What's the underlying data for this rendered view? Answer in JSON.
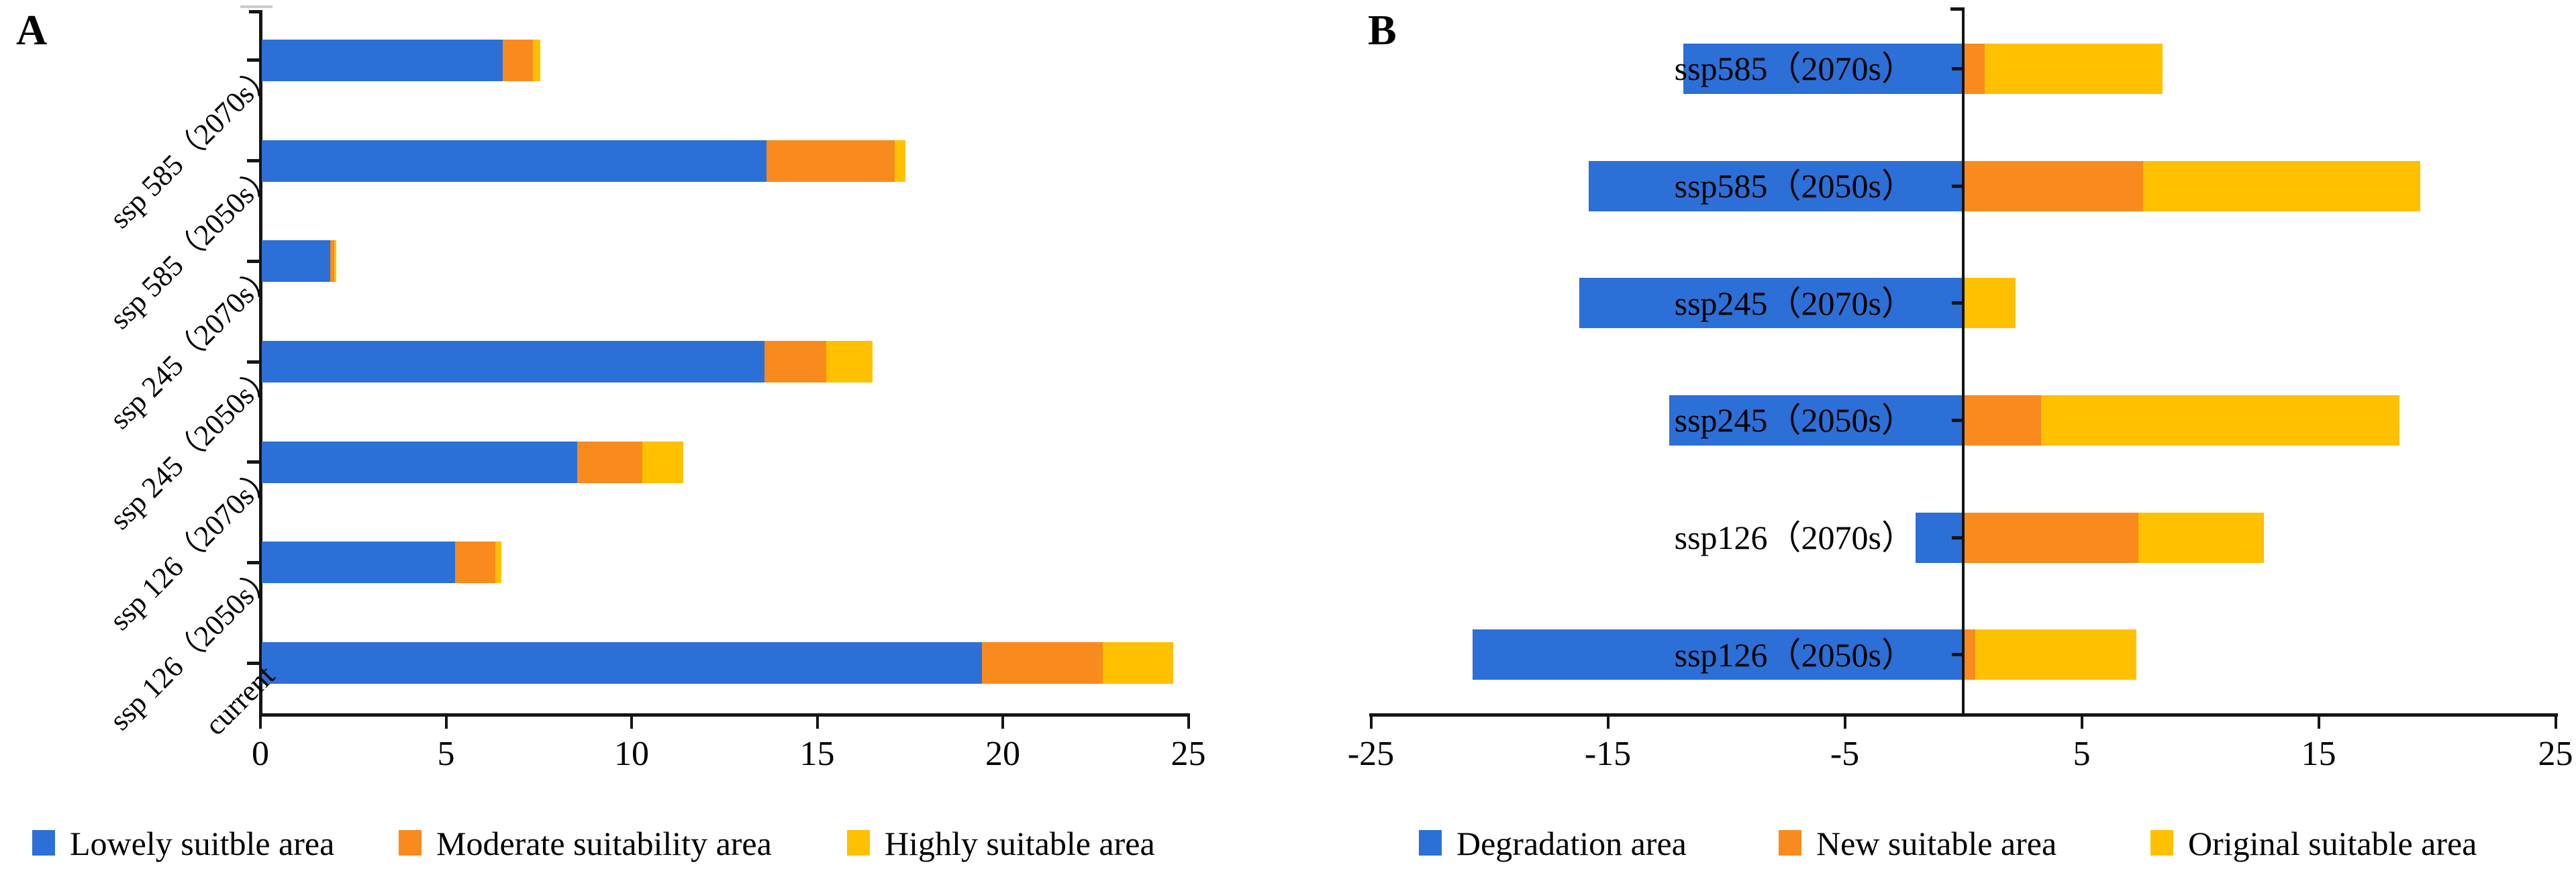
{
  "panels": [
    {
      "letter": "A"
    },
    {
      "letter": "B"
    }
  ],
  "chart_data": [
    {
      "type": "bar",
      "orientation": "horizontal-stacked",
      "panel_label": "A",
      "title": "",
      "xlabel": "",
      "ylabel": "",
      "grid": false,
      "legend_position": "bottom",
      "xlim": [
        0,
        25
      ],
      "x_ticks": [
        {
          "value": 0,
          "label": "0"
        },
        {
          "value": 5,
          "label": "5"
        },
        {
          "value": 10,
          "label": "10"
        },
        {
          "value": 15,
          "label": "15"
        },
        {
          "value": 20,
          "label": "20"
        },
        {
          "value": 25,
          "label": "25"
        }
      ],
      "categories": [
        "ssp 585（2070s）",
        "ssp 585（2050s）",
        "ssp 245（2070s）",
        "ssp 245（2050s）",
        "ssp 126（2070s）",
        "ssp 126（2050s）",
        "current"
      ],
      "series": [
        {
          "name": "Lowely suitble area",
          "color": "#2C6FD6",
          "values": [
            6.5,
            13.6,
            1.85,
            13.55,
            8.5,
            5.2,
            19.4
          ]
        },
        {
          "name": "Moderate suitability area",
          "color": "#F98A1E",
          "values": [
            0.8,
            3.45,
            0.1,
            1.65,
            1.75,
            1.1,
            3.25
          ]
        },
        {
          "name": "Highly suitable area",
          "color": "#FFC000",
          "values": [
            0.2,
            0.3,
            0.05,
            1.25,
            1.1,
            0.15,
            1.9
          ]
        }
      ]
    },
    {
      "type": "bar",
      "orientation": "horizontal-diverging-stacked",
      "panel_label": "B",
      "title": "",
      "xlabel": "",
      "ylabel": "",
      "grid": false,
      "legend_position": "bottom",
      "xlim": [
        -25,
        25
      ],
      "x_ticks": [
        {
          "value": -25,
          "label": "-25"
        },
        {
          "value": -15,
          "label": "-15"
        },
        {
          "value": -5,
          "label": "-5"
        },
        {
          "value": 5,
          "label": "5"
        },
        {
          "value": 15,
          "label": "15"
        },
        {
          "value": 25,
          "label": "25"
        }
      ],
      "categories": [
        "ssp585（2070s）",
        "ssp585（2050s）",
        "ssp245（2070s）",
        "ssp245（2050s）",
        "ssp126（2070s）",
        "ssp126（2050s）"
      ],
      "series": [
        {
          "name": "Degradation area",
          "color": "#2C6FD6",
          "values": [
            -11.8,
            -15.8,
            -16.2,
            -12.4,
            -2.0,
            -20.7
          ]
        },
        {
          "name": "New suitable area",
          "color": "#F98A1E",
          "values": [
            0.9,
            7.6,
            0.0,
            3.3,
            7.4,
            0.5
          ]
        },
        {
          "name": "Original suitable area",
          "color": "#FFC000",
          "values": [
            7.5,
            11.7,
            2.2,
            15.1,
            5.3,
            6.8
          ]
        }
      ]
    }
  ]
}
